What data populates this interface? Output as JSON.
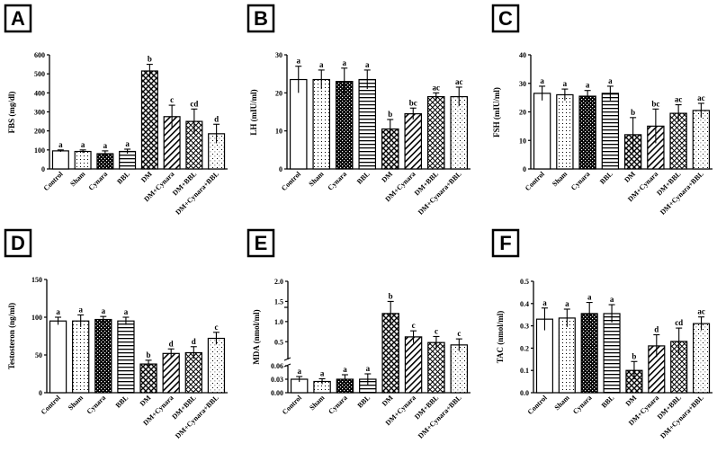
{
  "colors": {
    "ink": "#000000",
    "background": "#ffffff"
  },
  "chart_data": [
    {
      "panel": "A",
      "type": "bar",
      "ylabel": "FBS (mg/dl)",
      "ylim": [
        0,
        600
      ],
      "yticks": [
        0,
        100,
        200,
        300,
        400,
        500,
        600
      ],
      "ytick_labels": [
        "0",
        "100",
        "200",
        "300",
        "400",
        "500",
        "600"
      ],
      "categories": [
        "Control",
        "Sham",
        "Cynara",
        "BBL",
        "DM",
        "DM+Cynara",
        "DM+BBL",
        "DM+Cynara+BBL"
      ],
      "values": [
        95,
        92,
        80,
        92,
        515,
        275,
        250,
        185
      ],
      "errors": [
        5,
        8,
        15,
        12,
        35,
        60,
        65,
        50
      ],
      "letters": [
        "a",
        "a",
        "a",
        "a",
        "b",
        "c",
        "cd",
        "d"
      ],
      "patterns": [
        "white",
        "dots",
        "checker",
        "hlines",
        "diamond",
        "diag",
        "crosshatch",
        "sparse"
      ]
    },
    {
      "panel": "B",
      "type": "bar",
      "ylabel": "LH (mIU/ml)",
      "ylim": [
        0,
        30
      ],
      "yticks": [
        0,
        10,
        20,
        30
      ],
      "ytick_labels": [
        "0",
        "10",
        "20",
        "30"
      ],
      "categories": [
        "Control",
        "Sham",
        "Cynara",
        "BBL",
        "DM",
        "DM+Cynara",
        "DM+BBL",
        "DM+Cynara+BBL"
      ],
      "values": [
        23.5,
        23.5,
        23,
        23.5,
        10.5,
        14.5,
        19,
        19
      ],
      "errors": [
        3.5,
        2.5,
        3.5,
        2.5,
        2.5,
        1.5,
        1,
        2.5
      ],
      "letters": [
        "a",
        "a",
        "a",
        "a",
        "b",
        "bc",
        "ac",
        "ac"
      ],
      "patterns": [
        "white",
        "dots",
        "checker",
        "hlines",
        "diamond",
        "diag",
        "crosshatch",
        "sparse"
      ]
    },
    {
      "panel": "C",
      "type": "bar",
      "ylabel": "FSH (mIU/ml)",
      "ylim": [
        0,
        40
      ],
      "yticks": [
        0,
        10,
        20,
        30,
        40
      ],
      "ytick_labels": [
        "0",
        "10",
        "20",
        "30",
        "40"
      ],
      "categories": [
        "Control",
        "Sham",
        "Cynara",
        "BBL",
        "DM",
        "DM+Cynara",
        "DM+BBL",
        "DM+Cynara+BBL"
      ],
      "values": [
        26.5,
        26,
        25.5,
        26.5,
        12,
        15,
        19.5,
        20.5
      ],
      "errors": [
        2.5,
        2,
        2,
        2.5,
        6,
        6,
        3,
        2.5
      ],
      "letters": [
        "a",
        "a",
        "a",
        "a",
        "b",
        "bc",
        "ac",
        "ac"
      ],
      "patterns": [
        "white",
        "dots",
        "checker",
        "hlines",
        "diamond",
        "diag",
        "crosshatch",
        "sparse"
      ]
    },
    {
      "panel": "D",
      "type": "bar",
      "ylabel": "Testosteron (ng/ml)",
      "ylim": [
        0,
        150
      ],
      "yticks": [
        0,
        50,
        100,
        150
      ],
      "ytick_labels": [
        "0",
        "50",
        "100",
        "150"
      ],
      "categories": [
        "Control",
        "Sham",
        "Cynara",
        "BBL",
        "DM",
        "DM+Cynara",
        "DM+BBL",
        "DM+Cynara+BBL"
      ],
      "values": [
        95,
        95,
        97,
        95,
        38,
        52,
        53,
        72
      ],
      "errors": [
        5,
        8,
        4,
        5,
        5,
        6,
        8,
        8
      ],
      "letters": [
        "a",
        "a",
        "a",
        "a",
        "b",
        "d",
        "d",
        "c"
      ],
      "patterns": [
        "white",
        "dots",
        "checker",
        "hlines",
        "diamond",
        "diag",
        "crosshatch",
        "sparse"
      ]
    },
    {
      "panel": "E",
      "type": "bar",
      "ylabel": "MDA (nmol/ml)",
      "broken_axis": true,
      "ylim_lower": [
        0,
        0.06
      ],
      "ylim_upper": [
        0.06,
        2.0
      ],
      "yticks_lower": [
        0,
        0.03,
        0.06
      ],
      "ytick_labels_lower": [
        "0.00",
        "0.03",
        "0.06"
      ],
      "yticks_upper": [
        0.5,
        1.0,
        1.5,
        2.0
      ],
      "ytick_labels_upper": [
        "0.5",
        "1.0",
        "1.5",
        "2.0"
      ],
      "categories": [
        "Control",
        "Sham",
        "Cynara",
        "BBL",
        "DM",
        "DM+Cynara",
        "DM+BBL",
        "DM+Cynara+BBL"
      ],
      "values": [
        0.03,
        0.025,
        0.03,
        0.03,
        1.2,
        0.62,
        0.48,
        0.42
      ],
      "errors": [
        0.006,
        0.006,
        0.01,
        0.012,
        0.3,
        0.15,
        0.15,
        0.15
      ],
      "letters": [
        "a",
        "a",
        "a",
        "a",
        "b",
        "c",
        "c",
        "c"
      ],
      "patterns": [
        "white",
        "dots",
        "checker",
        "hlines",
        "diamond",
        "diag",
        "crosshatch",
        "sparse"
      ]
    },
    {
      "panel": "F",
      "type": "bar",
      "ylabel": "TAC (nmol/ml)",
      "ylim": [
        0,
        0.5
      ],
      "yticks": [
        0,
        0.1,
        0.2,
        0.3,
        0.4,
        0.5
      ],
      "ytick_labels": [
        "0.0",
        "0.1",
        "0.2",
        "0.3",
        "0.4",
        "0.5"
      ],
      "categories": [
        "Control",
        "Sham",
        "Cynara",
        "BBL",
        "DM",
        "DM+Cynara",
        "DM+BBL",
        "DM+Cynara+BBL"
      ],
      "values": [
        0.33,
        0.335,
        0.355,
        0.355,
        0.1,
        0.21,
        0.23,
        0.31
      ],
      "errors": [
        0.05,
        0.04,
        0.05,
        0.04,
        0.04,
        0.05,
        0.06,
        0.03
      ],
      "letters": [
        "a",
        "a",
        "a",
        "a",
        "b",
        "d",
        "cd",
        "ac"
      ],
      "patterns": [
        "white",
        "dots",
        "checker",
        "hlines",
        "diamond",
        "diag",
        "crosshatch",
        "sparse"
      ]
    }
  ]
}
